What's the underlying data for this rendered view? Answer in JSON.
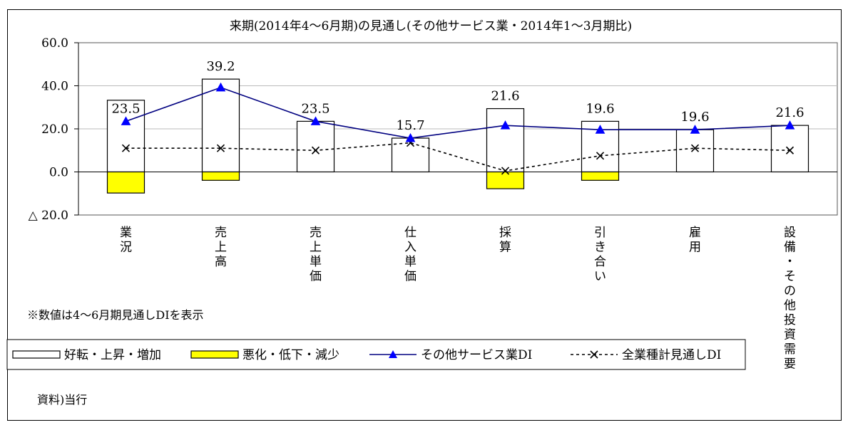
{
  "chart_data": {
    "type": "bar",
    "title": "来期(2014年4～6月期)の見通し(その他サービス業・2014年1～3月期比)",
    "ylim": [
      -20,
      60
    ],
    "yticks": [
      60,
      40,
      20,
      0,
      -20
    ],
    "ytick_labels": [
      "60.0",
      "40.0",
      "20.0",
      "0.0",
      "△ 20.0"
    ],
    "grid": true,
    "categories": [
      "業況",
      "売上高",
      "売上単価",
      "仕入単価",
      "採算",
      "引き合い",
      "雇用",
      "設備・その他投資需要"
    ],
    "series": [
      {
        "name": "好転・上昇・増加",
        "kind": "bar",
        "color": "#ffffff",
        "values": [
          33.3,
          43.1,
          23.5,
          15.7,
          29.4,
          23.5,
          19.6,
          21.6
        ]
      },
      {
        "name": "悪化・低下・減少",
        "kind": "bar",
        "color": "#ffff00",
        "values": [
          -9.8,
          -3.9,
          0.0,
          0.0,
          -7.8,
          -3.9,
          0.0,
          0.0
        ]
      },
      {
        "name": "その他サービス業DI",
        "kind": "line",
        "color": "#000080",
        "marker": "triangle",
        "values": [
          23.5,
          39.2,
          23.5,
          15.7,
          21.6,
          19.6,
          19.6,
          21.6
        ]
      },
      {
        "name": "全業種計見通しDI",
        "kind": "line",
        "color": "#000000",
        "marker": "x",
        "dashed": true,
        "values": [
          11.0,
          11.0,
          10.0,
          13.5,
          0.5,
          7.5,
          11.0,
          10.0
        ]
      }
    ],
    "data_labels": [
      "23.5",
      "39.2",
      "23.5",
      "15.7",
      "21.6",
      "19.6",
      "19.6",
      "21.6"
    ],
    "legend_position": "bottom",
    "note": "※数値は4～6月期見通しDIを表示",
    "source": "資料)当行"
  }
}
